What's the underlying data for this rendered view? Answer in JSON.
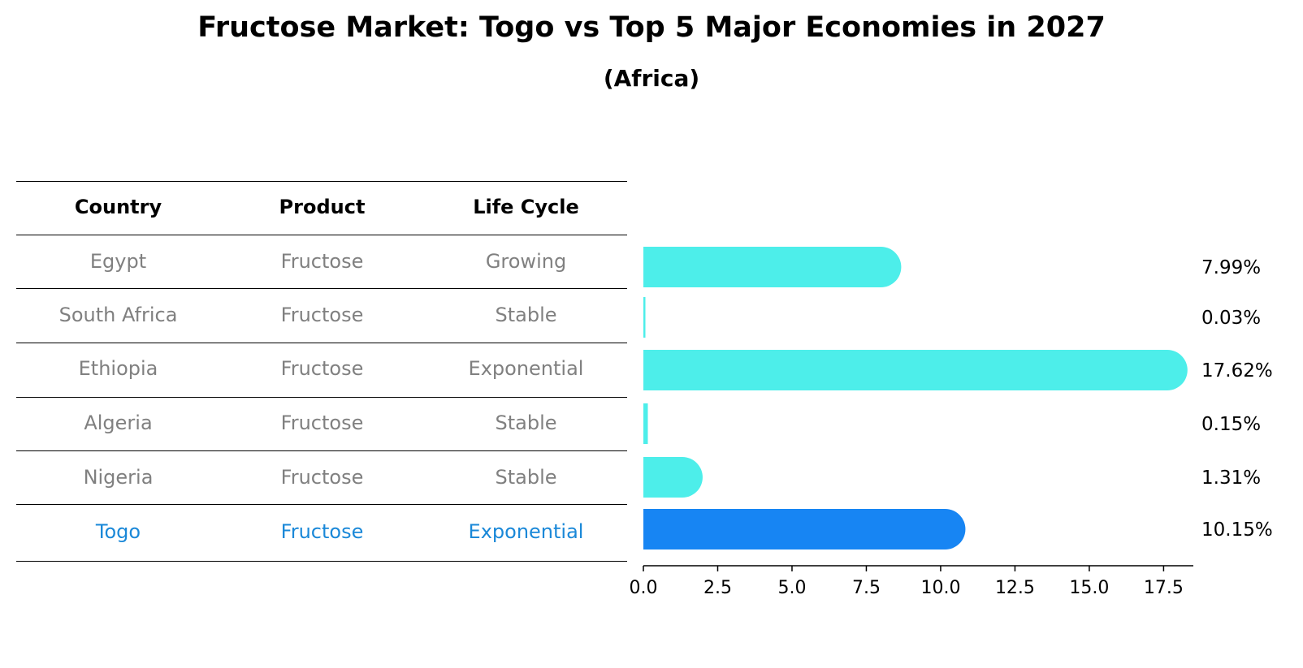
{
  "title": "Fructose Market: Togo vs Top 5 Major Economies in 2027",
  "subtitle": "(Africa)",
  "table": {
    "headers": [
      "Country",
      "Product",
      "Life Cycle"
    ],
    "rows": [
      [
        "Egypt",
        "Fructose",
        "Growing"
      ],
      [
        "South Africa",
        "Fructose",
        "Stable"
      ],
      [
        "Ethiopia",
        "Fructose",
        "Exponential"
      ],
      [
        "Algeria",
        "Fructose",
        "Stable"
      ],
      [
        "Nigeria",
        "Fructose",
        "Stable"
      ],
      [
        "Togo",
        "Fructose",
        "Exponential"
      ]
    ],
    "highlight_row": 5
  },
  "colors": {
    "bar": "#4deeea",
    "highlight_bar": "#1785f3",
    "highlight_text": "#1a88d8",
    "row_text": "#808080"
  },
  "chart_data": {
    "type": "bar",
    "orientation": "horizontal",
    "categories": [
      "Egypt",
      "South Africa",
      "Ethiopia",
      "Algeria",
      "Nigeria",
      "Togo"
    ],
    "values": [
      7.99,
      0.03,
      17.62,
      0.15,
      1.31,
      10.15
    ],
    "value_labels": [
      "7.99%",
      "0.03%",
      "17.62%",
      "0.15%",
      "1.31%",
      "10.15%"
    ],
    "highlight": "Togo",
    "xlim": [
      0,
      18.5
    ],
    "xticks": [
      0.0,
      2.5,
      5.0,
      7.5,
      10.0,
      12.5,
      15.0,
      17.5
    ],
    "xtick_labels": [
      "0.0",
      "2.5",
      "5.0",
      "7.5",
      "10.0",
      "12.5",
      "15.0",
      "17.5"
    ],
    "grid": false
  }
}
